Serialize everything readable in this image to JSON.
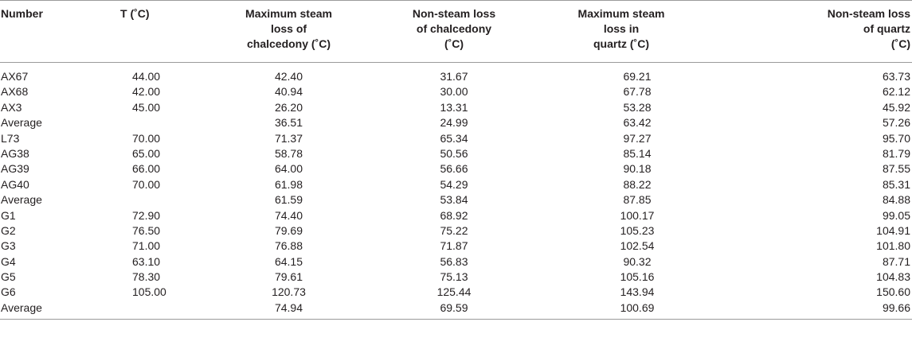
{
  "table": {
    "headers": [
      "Number",
      "T (˚C)",
      "Maximum steam\nloss of\nchalcedony (˚C)",
      "Non-steam loss\nof chalcedony\n(˚C)",
      "Maximum steam\nloss in\nquartz (˚C)",
      "Non-steam loss\nof quartz\n(˚C)"
    ],
    "rows": [
      [
        "AX67",
        "44.00",
        "42.40",
        "31.67",
        "69.21",
        "63.73"
      ],
      [
        "AX68",
        "42.00",
        "40.94",
        "30.00",
        "67.78",
        "62.12"
      ],
      [
        "AX3",
        "45.00",
        "26.20",
        "13.31",
        "53.28",
        "45.92"
      ],
      [
        "Average",
        "",
        "36.51",
        "24.99",
        "63.42",
        "57.26"
      ],
      [
        "L73",
        "70.00",
        "71.37",
        "65.34",
        "97.27",
        "95.70"
      ],
      [
        "AG38",
        "65.00",
        "58.78",
        "50.56",
        "85.14",
        "81.79"
      ],
      [
        "AG39",
        "66.00",
        "64.00",
        "56.66",
        "90.18",
        "87.55"
      ],
      [
        "AG40",
        "70.00",
        "61.98",
        "54.29",
        "88.22",
        "85.31"
      ],
      [
        "Average",
        "",
        "61.59",
        "53.84",
        "87.85",
        "84.88"
      ],
      [
        "G1",
        "72.90",
        "74.40",
        "68.92",
        "100.17",
        "99.05"
      ],
      [
        "G2",
        "76.50",
        "79.69",
        "75.22",
        "105.23",
        "104.91"
      ],
      [
        "G3",
        "71.00",
        "76.88",
        "71.87",
        "102.54",
        "101.80"
      ],
      [
        "G4",
        "63.10",
        "64.15",
        "56.83",
        "90.32",
        "87.71"
      ],
      [
        "G5",
        "78.30",
        "79.61",
        "75.13",
        "105.16",
        "104.83"
      ],
      [
        "G6",
        "105.00",
        "120.73",
        "125.44",
        "143.94",
        "150.60"
      ],
      [
        "Average",
        "",
        "74.94",
        "69.59",
        "100.69",
        "99.66"
      ]
    ]
  }
}
